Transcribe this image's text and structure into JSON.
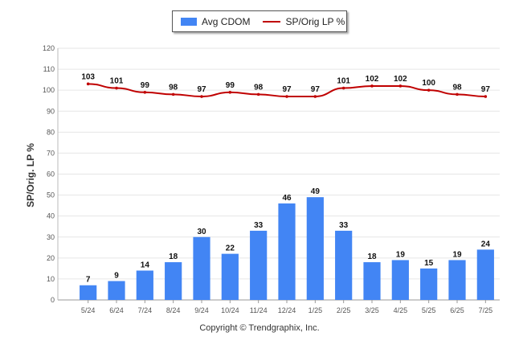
{
  "chart_data": {
    "type": "bar",
    "categories": [
      "5/24",
      "6/24",
      "7/24",
      "8/24",
      "9/24",
      "10/24",
      "11/24",
      "12/24",
      "1/25",
      "2/25",
      "3/25",
      "4/25",
      "5/25",
      "6/25",
      "7/25"
    ],
    "series": [
      {
        "name": "Avg CDOM",
        "type": "bar",
        "color": "#4285f4",
        "values": [
          7,
          9,
          14,
          18,
          30,
          22,
          33,
          46,
          49,
          33,
          18,
          19,
          15,
          19,
          24
        ]
      },
      {
        "name": "SP/Orig LP %",
        "type": "line",
        "color": "#c00000",
        "values": [
          103,
          101,
          99,
          98,
          97,
          99,
          98,
          97,
          97,
          101,
          102,
          102,
          100,
          98,
          97
        ]
      }
    ],
    "ylabel": "SP/Orig. LP %",
    "ylim": [
      0,
      120
    ],
    "yticks": [
      0,
      10,
      20,
      30,
      40,
      50,
      60,
      70,
      80,
      90,
      100,
      110,
      120
    ],
    "grid": true,
    "legend_position": "top-center"
  },
  "footer": {
    "copyright": "Copyright © Trendgraphix, Inc."
  }
}
